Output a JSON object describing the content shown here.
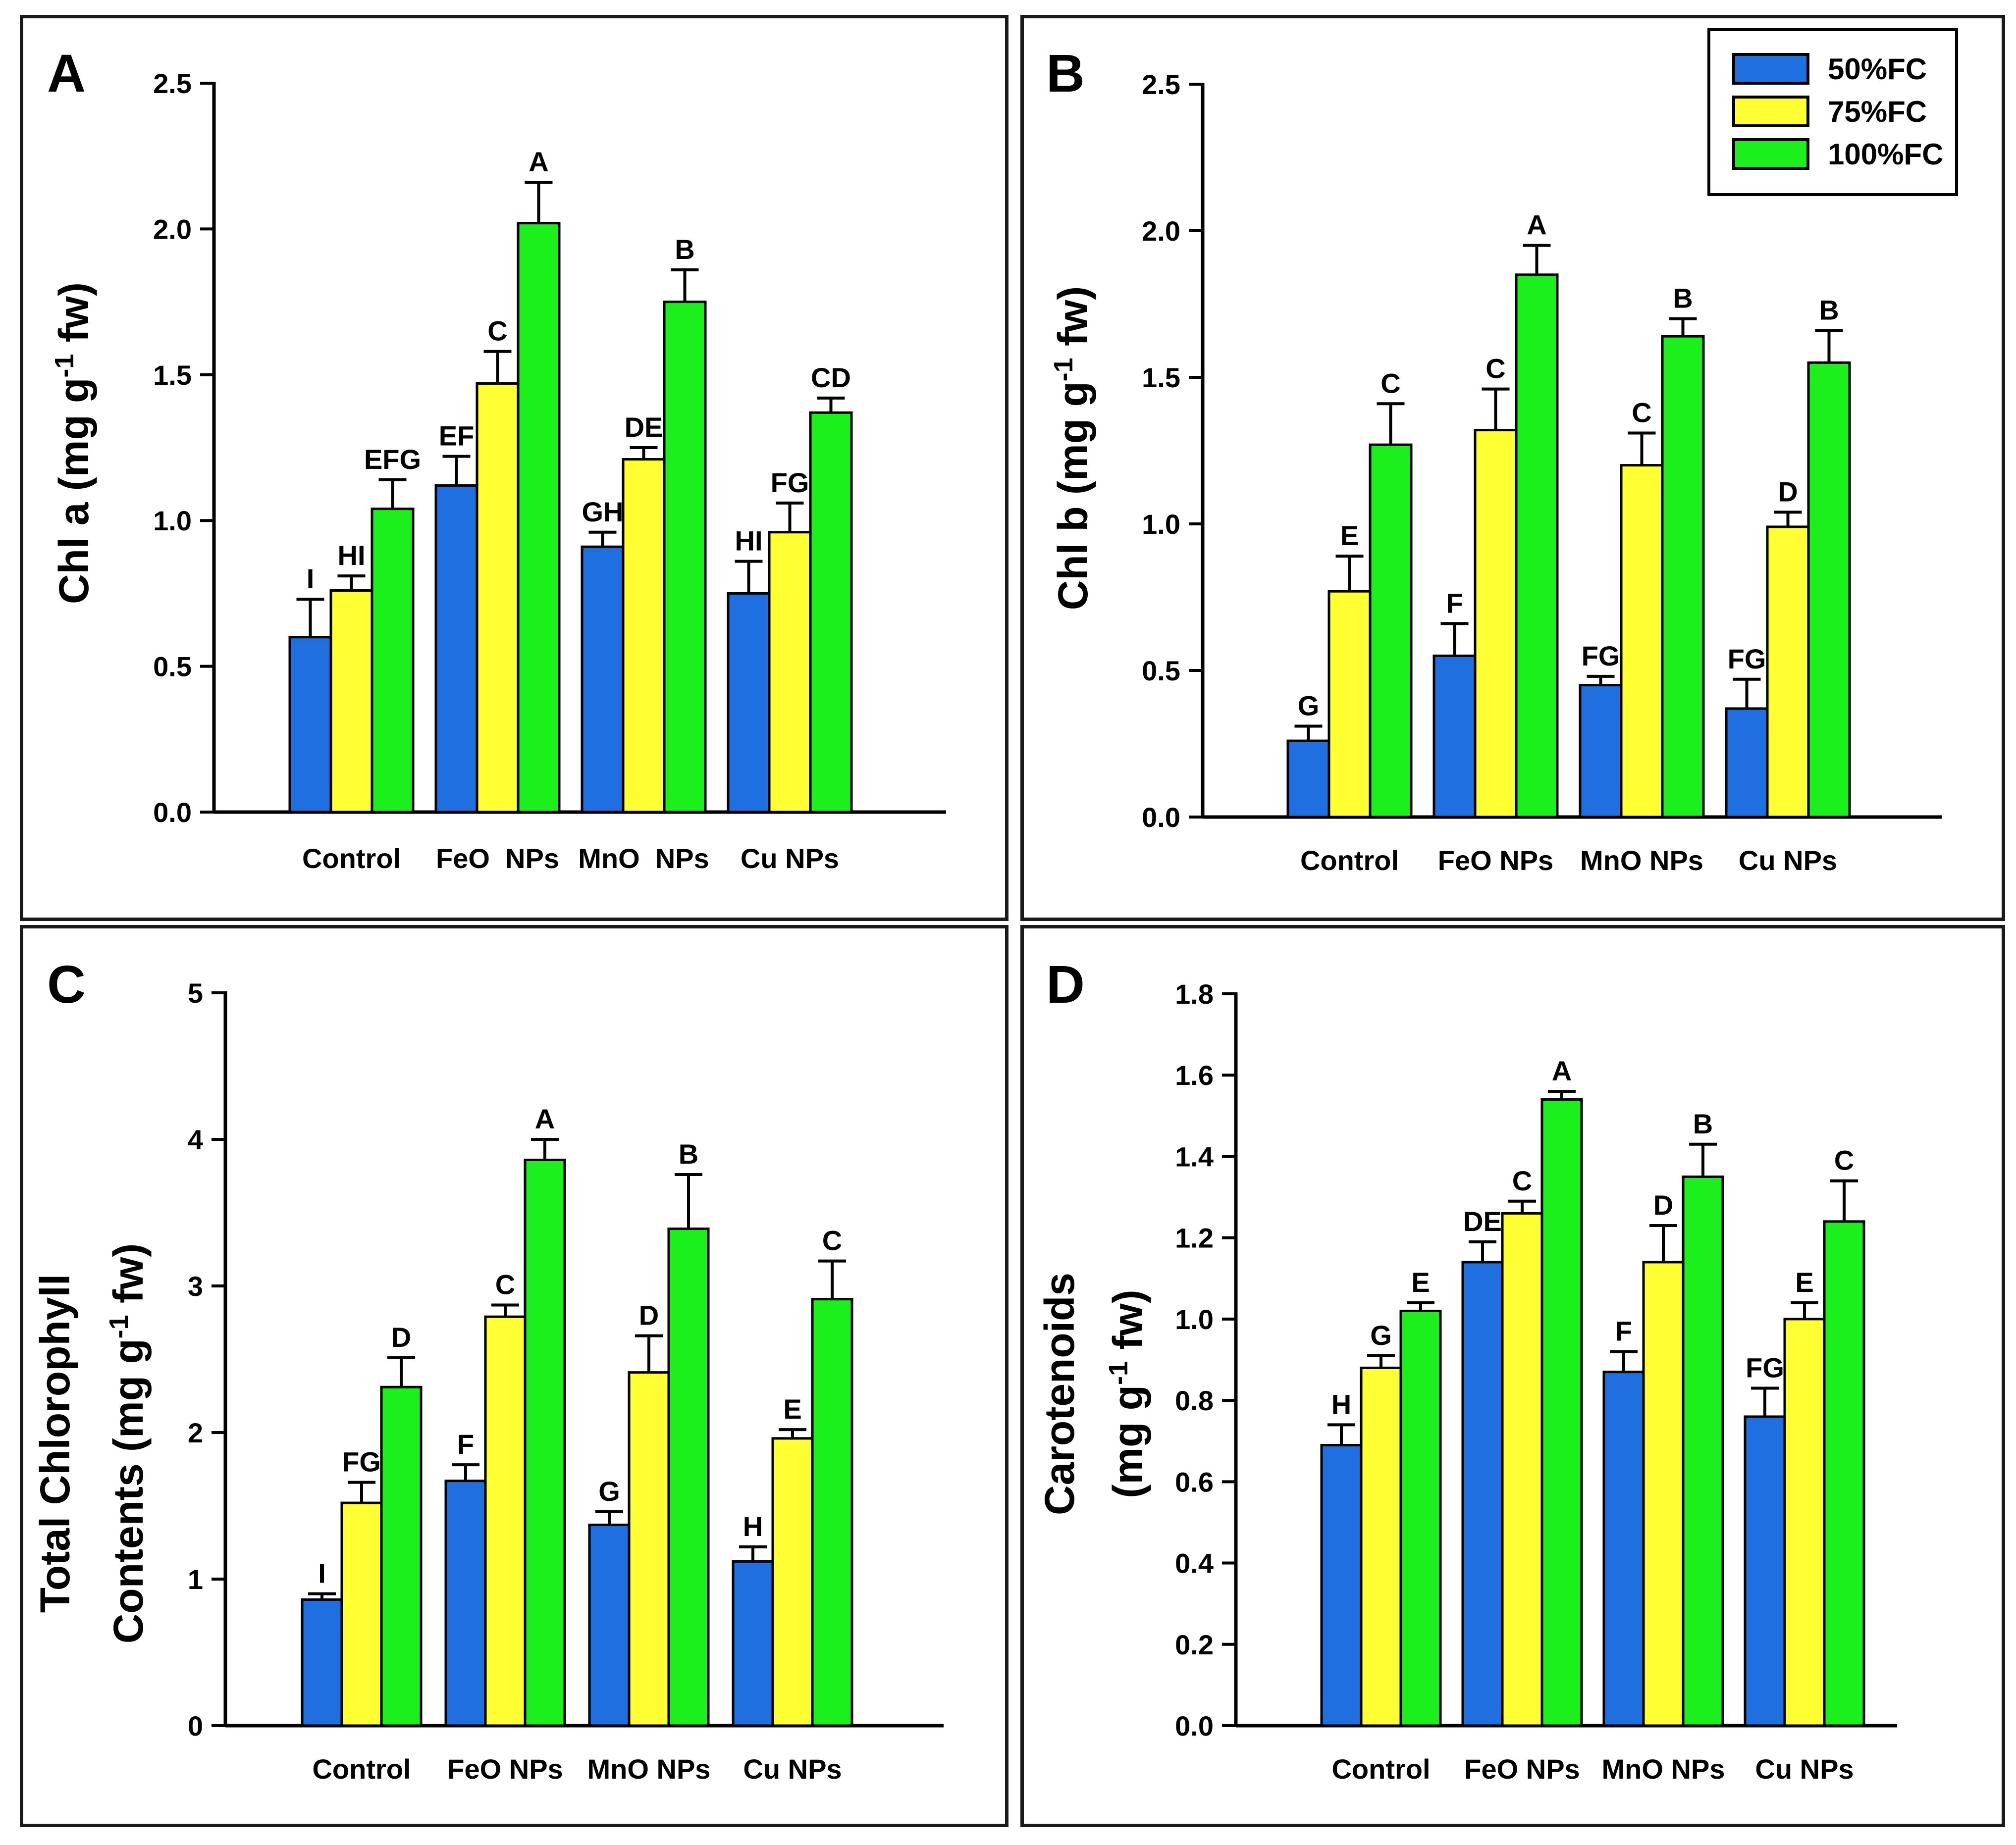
{
  "colors": {
    "s50": "#1f6fe0",
    "s75": "#ffff33",
    "s100": "#1cf01c",
    "axis": "#000000"
  },
  "legend": {
    "items": [
      {
        "label": "50%FC",
        "color": "#1f6fe0"
      },
      {
        "label": "75%FC",
        "color": "#ffff33"
      },
      {
        "label": "100%FC",
        "color": "#1cf01c"
      }
    ]
  },
  "chart_data": [
    {
      "panel": "A",
      "type": "bar",
      "ylabel": {
        "main": "Chl a (mg g",
        "sup": "-1",
        "tail": " fw)"
      },
      "categories": [
        "Control",
        "FeO  NPs",
        "MnO  NPs",
        "Cu NPs"
      ],
      "ylim": [
        0,
        2.5
      ],
      "yticks": [
        "0.0",
        "0.5",
        "1.0",
        "1.5",
        "2.0",
        "2.5"
      ],
      "series": [
        {
          "name": "50%FC",
          "values": [
            0.6,
            1.12,
            0.91,
            0.75
          ],
          "errors": [
            0.13,
            0.1,
            0.05,
            0.11
          ],
          "letters": [
            "I",
            "EF",
            "GH",
            "HI"
          ]
        },
        {
          "name": "75%FC",
          "values": [
            0.76,
            1.47,
            1.21,
            0.96
          ],
          "errors": [
            0.05,
            0.11,
            0.04,
            0.1
          ],
          "letters": [
            "HI",
            "C",
            "DE",
            "FG"
          ]
        },
        {
          "name": "100%FC",
          "values": [
            1.04,
            2.02,
            1.75,
            1.37
          ],
          "errors": [
            0.1,
            0.14,
            0.11,
            0.05
          ],
          "letters": [
            "EFG",
            "A",
            "B",
            "CD"
          ]
        }
      ]
    },
    {
      "panel": "B",
      "type": "bar",
      "ylabel": {
        "main": "Chl b (mg g",
        "sup": "-1",
        "tail": " fw)"
      },
      "categories": [
        "Control",
        "FeO NPs",
        "MnO NPs",
        "Cu NPs"
      ],
      "ylim": [
        0,
        2.5
      ],
      "yticks": [
        "0.0",
        "0.5",
        "1.0",
        "1.5",
        "2.0",
        "2.5"
      ],
      "series": [
        {
          "name": "50%FC",
          "values": [
            0.26,
            0.55,
            0.45,
            0.37
          ],
          "errors": [
            0.05,
            0.11,
            0.03,
            0.1
          ],
          "letters": [
            "G",
            "F",
            "FG",
            "FG"
          ]
        },
        {
          "name": "75%FC",
          "values": [
            0.77,
            1.32,
            1.2,
            0.99
          ],
          "errors": [
            0.12,
            0.14,
            0.11,
            0.05
          ],
          "letters": [
            "E",
            "C",
            "C",
            "D"
          ]
        },
        {
          "name": "100%FC",
          "values": [
            1.27,
            1.85,
            1.64,
            1.55
          ],
          "errors": [
            0.14,
            0.1,
            0.06,
            0.11
          ],
          "letters": [
            "C",
            "A",
            "B",
            "B"
          ]
        }
      ]
    },
    {
      "panel": "C",
      "type": "bar",
      "ylabel": {
        "line1": "Total Chlorophyll",
        "main": "Contents (mg g",
        "sup": "-1",
        "tail": " fw)"
      },
      "categories": [
        "Control",
        "FeO NPs",
        "MnO NPs",
        "Cu NPs"
      ],
      "ylim": [
        0,
        5
      ],
      "yticks": [
        "0",
        "1",
        "2",
        "3",
        "4",
        "5"
      ],
      "series": [
        {
          "name": "50%FC",
          "values": [
            0.86,
            1.67,
            1.37,
            1.12
          ],
          "errors": [
            0.04,
            0.11,
            0.09,
            0.1
          ],
          "letters": [
            "I",
            "F",
            "G",
            "H"
          ]
        },
        {
          "name": "75%FC",
          "values": [
            1.52,
            2.79,
            2.41,
            1.96
          ],
          "errors": [
            0.14,
            0.08,
            0.25,
            0.06
          ],
          "letters": [
            "FG",
            "C",
            "D",
            "E"
          ]
        },
        {
          "name": "100%FC",
          "values": [
            2.31,
            3.86,
            3.39,
            2.91
          ],
          "errors": [
            0.2,
            0.14,
            0.37,
            0.26
          ],
          "letters": [
            "D",
            "A",
            "B",
            "C"
          ]
        }
      ]
    },
    {
      "panel": "D",
      "type": "bar",
      "ylabel": {
        "line1": "Carotenoids",
        "main": "(mg g",
        "sup": "-1",
        "tail": " fw)"
      },
      "categories": [
        "Control",
        "FeO NPs",
        "MnO NPs",
        "Cu NPs"
      ],
      "ylim": [
        0,
        1.8
      ],
      "yticks": [
        "0.0",
        "0.2",
        "0.4",
        "0.6",
        "0.8",
        "1.0",
        "1.2",
        "1.4",
        "1.6",
        "1.8"
      ],
      "series": [
        {
          "name": "50%FC",
          "values": [
            0.69,
            1.14,
            0.87,
            0.76
          ],
          "errors": [
            0.05,
            0.05,
            0.05,
            0.07
          ],
          "letters": [
            "H",
            "DE",
            "F",
            "FG"
          ]
        },
        {
          "name": "75%FC",
          "values": [
            0.88,
            1.26,
            1.14,
            1.0
          ],
          "errors": [
            0.03,
            0.03,
            0.09,
            0.04
          ],
          "letters": [
            "G",
            "C",
            "D",
            "E"
          ]
        },
        {
          "name": "100%FC",
          "values": [
            1.02,
            1.54,
            1.35,
            1.24
          ],
          "errors": [
            0.02,
            0.02,
            0.08,
            0.1
          ],
          "letters": [
            "E",
            "A",
            "B",
            "C"
          ]
        }
      ]
    }
  ]
}
